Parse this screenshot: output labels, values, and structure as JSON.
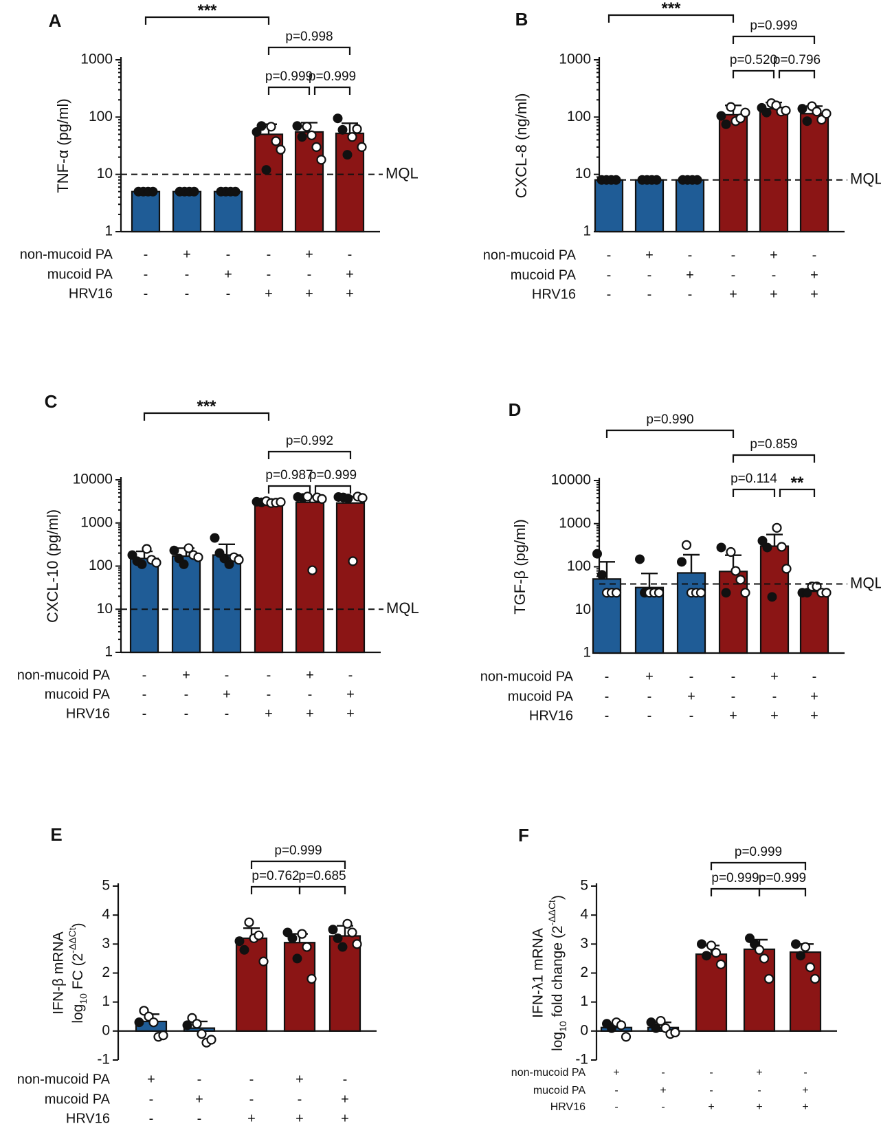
{
  "colors": {
    "control": "#1f5c96",
    "virus": "#8b1515",
    "ink": "#111111"
  },
  "row_labels": [
    "non-mucoid PA",
    "mucoid PA",
    "HRV16"
  ],
  "mql_label": "MQL",
  "chart_data": [
    {
      "panel": "A",
      "type": "bar",
      "scale": "log",
      "ylabel": "TNF-α (pg/ml)",
      "ylim": [
        1,
        1000
      ],
      "yticks": [
        1,
        10,
        100,
        1000
      ],
      "ytick_labels": [
        "1",
        "10",
        "100",
        "1000"
      ],
      "mql": 10,
      "bar_colors": [
        "control",
        "control",
        "control",
        "virus",
        "virus",
        "virus"
      ],
      "values": [
        5,
        5,
        5,
        50,
        55,
        52
      ],
      "errors": [
        0,
        0,
        0,
        75,
        80,
        78
      ],
      "points": [
        {
          "f": [
            5,
            5,
            5,
            5
          ],
          "o": []
        },
        {
          "f": [
            5,
            5,
            5,
            5
          ],
          "o": []
        },
        {
          "f": [
            5,
            5,
            5,
            5
          ],
          "o": []
        },
        {
          "f": [
            55,
            70,
            12
          ],
          "o": [
            68,
            38,
            27
          ]
        },
        {
          "f": [
            70,
            45
          ],
          "o": [
            68,
            48,
            30,
            18
          ]
        },
        {
          "f": [
            95,
            60,
            22
          ],
          "o": [
            45,
            62,
            30
          ]
        }
      ],
      "conditions": [
        [
          "-",
          "+",
          "-",
          "-",
          "+",
          "-"
        ],
        [
          "-",
          "-",
          "+",
          "-",
          "-",
          "+"
        ],
        [
          "-",
          "-",
          "-",
          "+",
          "+",
          "+"
        ]
      ],
      "comparisons": [
        {
          "from": 0,
          "to": 3,
          "label": "***",
          "level": 0
        },
        {
          "from": 3,
          "to": 5,
          "label": "p=0.998",
          "level": 1
        },
        {
          "from": 3,
          "to": 4,
          "label": "p=0.999",
          "level": 2
        },
        {
          "from": 4,
          "to": 5,
          "label": "p=0.999",
          "level": 2
        }
      ]
    },
    {
      "panel": "B",
      "type": "bar",
      "scale": "log",
      "ylabel": "CXCL-8 (ng/ml)",
      "ylim": [
        1,
        1000
      ],
      "yticks": [
        1,
        10,
        100,
        1000
      ],
      "ytick_labels": [
        "1",
        "10",
        "100",
        "1000"
      ],
      "mql": 8,
      "bar_colors": [
        "control",
        "control",
        "control",
        "virus",
        "virus",
        "virus"
      ],
      "values": [
        8,
        8,
        8,
        110,
        140,
        115
      ],
      "errors": [
        0,
        0,
        0,
        160,
        180,
        155
      ],
      "points": [
        {
          "f": [
            8,
            8,
            8,
            8
          ],
          "o": []
        },
        {
          "f": [
            8,
            8,
            8,
            8
          ],
          "o": []
        },
        {
          "f": [
            8,
            8,
            8,
            8
          ],
          "o": []
        },
        {
          "f": [
            105,
            75
          ],
          "o": [
            150,
            85,
            95,
            120
          ]
        },
        {
          "f": [
            145,
            120
          ],
          "o": [
            175,
            160,
            125,
            130
          ]
        },
        {
          "f": [
            140,
            85
          ],
          "o": [
            155,
            125,
            90,
            115
          ]
        }
      ],
      "conditions": [
        [
          "-",
          "+",
          "-",
          "-",
          "+",
          "-"
        ],
        [
          "-",
          "-",
          "+",
          "-",
          "-",
          "+"
        ],
        [
          "-",
          "-",
          "-",
          "+",
          "+",
          "+"
        ]
      ],
      "comparisons": [
        {
          "from": 0,
          "to": 3,
          "label": "***",
          "level": 0
        },
        {
          "from": 3,
          "to": 5,
          "label": "p=0.999",
          "level": 1
        },
        {
          "from": 3,
          "to": 4,
          "label": "p=0.520",
          "level": 2
        },
        {
          "from": 4,
          "to": 5,
          "label": "p=0.796",
          "level": 2
        }
      ]
    },
    {
      "panel": "C",
      "type": "bar",
      "scale": "log",
      "ylabel": "CXCL-10 (pg/ml)",
      "ylim": [
        1,
        10000
      ],
      "yticks": [
        1,
        10,
        100,
        1000,
        10000
      ],
      "ytick_labels": [
        "1",
        "10",
        "100",
        "1000",
        "10000"
      ],
      "mql": 10,
      "bar_colors": [
        "control",
        "control",
        "control",
        "virus",
        "virus",
        "virus"
      ],
      "values": [
        150,
        170,
        180,
        3000,
        3000,
        2900
      ],
      "errors": [
        220,
        260,
        320,
        3300,
        4200,
        4100
      ],
      "points": [
        {
          "f": [
            180,
            130,
            110
          ],
          "o": [
            250,
            140,
            120
          ]
        },
        {
          "f": [
            230,
            150,
            110
          ],
          "o": [
            260,
            180,
            160
          ]
        },
        {
          "f": [
            450,
            200,
            150,
            110
          ],
          "o": [
            160,
            140
          ]
        },
        {
          "f": [
            3100,
            3000
          ],
          "o": [
            3200,
            2900,
            2950,
            3050
          ]
        },
        {
          "f": [
            4000,
            3800
          ],
          "o": [
            4100,
            80,
            3900,
            3600
          ]
        },
        {
          "f": [
            4000,
            3900,
            3700
          ],
          "o": [
            130,
            4100,
            3800
          ]
        }
      ],
      "conditions": [
        [
          "-",
          "+",
          "-",
          "-",
          "+",
          "-"
        ],
        [
          "-",
          "-",
          "+",
          "-",
          "-",
          "+"
        ],
        [
          "-",
          "-",
          "-",
          "+",
          "+",
          "+"
        ]
      ],
      "comparisons": [
        {
          "from": 0,
          "to": 3,
          "label": "***",
          "level": 0
        },
        {
          "from": 3,
          "to": 5,
          "label": "p=0.992",
          "level": 1
        },
        {
          "from": 3,
          "to": 4,
          "label": "p=0.987",
          "level": 2
        },
        {
          "from": 4,
          "to": 5,
          "label": "p=0.999",
          "level": 2
        }
      ]
    },
    {
      "panel": "D",
      "type": "bar",
      "scale": "log",
      "ylabel": "TGF-β (pg/ml)",
      "ylim": [
        1,
        10000
      ],
      "yticks": [
        1,
        10,
        100,
        1000,
        10000
      ],
      "ytick_labels": [
        "1",
        "10",
        "100",
        "1000",
        "10000"
      ],
      "mql": 40,
      "bar_colors": [
        "control",
        "control",
        "control",
        "virus",
        "virus",
        "virus"
      ],
      "values": [
        52,
        33,
        72,
        78,
        300,
        27
      ],
      "errors": [
        130,
        70,
        190,
        185,
        560,
        40
      ],
      "points": [
        {
          "f": [
            200,
            65
          ],
          "o": [
            25,
            25,
            25
          ]
        },
        {
          "f": [
            150,
            25
          ],
          "o": [
            25,
            25,
            25
          ]
        },
        {
          "f": [
            130
          ],
          "o": [
            320,
            25,
            25,
            25
          ]
        },
        {
          "f": [
            280,
            25
          ],
          "o": [
            220,
            80,
            50,
            25
          ]
        },
        {
          "f": [
            400,
            280,
            20
          ],
          "o": [
            800,
            290,
            90
          ]
        },
        {
          "f": [
            25,
            25
          ],
          "o": [
            35,
            35,
            25,
            25
          ]
        }
      ],
      "conditions": [
        [
          "-",
          "+",
          "-",
          "-",
          "+",
          "-"
        ],
        [
          "-",
          "-",
          "+",
          "-",
          "-",
          "+"
        ],
        [
          "-",
          "-",
          "-",
          "+",
          "+",
          "+"
        ]
      ],
      "comparisons": [
        {
          "from": 0,
          "to": 3,
          "label": "p=0.990",
          "level": 0
        },
        {
          "from": 3,
          "to": 5,
          "label": "p=0.859",
          "level": 1
        },
        {
          "from": 3,
          "to": 4,
          "label": "p=0.114",
          "level": 2
        },
        {
          "from": 4,
          "to": 5,
          "label": "**",
          "level": 2
        }
      ]
    },
    {
      "panel": "E",
      "type": "bar",
      "scale": "linear",
      "ylabel_lines": [
        "IFN-β mRNA",
        "log10 FC (2-ΔΔCt)"
      ],
      "ylim": [
        -1,
        5
      ],
      "yticks": [
        -1,
        0,
        1,
        2,
        3,
        4,
        5
      ],
      "ytick_labels": [
        "-1",
        "0",
        "1",
        "2",
        "3",
        "4",
        "5"
      ],
      "bar_colors": [
        "control",
        "control",
        "virus",
        "virus",
        "virus"
      ],
      "values": [
        0.33,
        0.1,
        3.2,
        3.05,
        3.28
      ],
      "errors": [
        0.58,
        0.33,
        3.55,
        3.35,
        3.63
      ],
      "points": [
        {
          "f": [
            0.3
          ],
          "o": [
            0.7,
            0.5,
            0.3,
            -0.2,
            -0.15
          ]
        },
        {
          "f": [
            0.2
          ],
          "o": [
            0.45,
            0.25,
            -0.1,
            -0.4,
            -0.3
          ]
        },
        {
          "f": [
            3.1,
            2.8
          ],
          "o": [
            3.75,
            3.2,
            3.3,
            2.4
          ]
        },
        {
          "f": [
            3.4,
            3.2,
            2.5
          ],
          "o": [
            3.35,
            2.9,
            1.8
          ]
        },
        {
          "f": [
            3.5,
            3.2,
            2.9
          ],
          "o": [
            3.7,
            3.4,
            3.0
          ]
        }
      ],
      "conditions": [
        [
          "+",
          "-",
          "-",
          "+",
          "-"
        ],
        [
          "-",
          "+",
          "-",
          "-",
          "+"
        ],
        [
          "-",
          "-",
          "+",
          "+",
          "+"
        ]
      ],
      "comparisons": [
        {
          "from": 2,
          "to": 4,
          "label": "p=0.999",
          "level": 1
        },
        {
          "from": 2,
          "to": 3,
          "label": "p=0.762",
          "level": 2
        },
        {
          "from": 3,
          "to": 4,
          "label": "p=0.685",
          "level": 2
        }
      ]
    },
    {
      "panel": "F",
      "type": "bar",
      "scale": "linear",
      "ylabel_lines": [
        "IFN-λ1 mRNA",
        "log10 fold change (2-ΔΔCt)"
      ],
      "ylim": [
        -1,
        5
      ],
      "yticks": [
        -1,
        0,
        1,
        2,
        3,
        4,
        5
      ],
      "ytick_labels": [
        "-1",
        "0",
        "1",
        "2",
        "3",
        "4",
        "5"
      ],
      "bar_colors": [
        "control",
        "control",
        "virus",
        "virus",
        "virus"
      ],
      "values": [
        0.12,
        0.12,
        2.65,
        2.82,
        2.72
      ],
      "errors": [
        0.25,
        0.3,
        2.95,
        3.15,
        3.0
      ],
      "points": [
        {
          "f": [
            0.25,
            0.1
          ],
          "o": [
            0.3,
            0.2,
            -0.2
          ]
        },
        {
          "f": [
            0.3,
            0.1
          ],
          "o": [
            0.35,
            0.1,
            -0.1,
            -0.05
          ]
        },
        {
          "f": [
            3.0,
            2.6
          ],
          "o": [
            2.95,
            2.7,
            2.3
          ]
        },
        {
          "f": [
            3.2,
            3.0
          ],
          "o": [
            2.8,
            2.5,
            1.8
          ]
        },
        {
          "f": [
            3.0,
            2.6
          ],
          "o": [
            2.9,
            2.2,
            1.8
          ]
        }
      ],
      "conditions": [
        [
          "+",
          "-",
          "-",
          "+",
          "-"
        ],
        [
          "-",
          "+",
          "-",
          "-",
          "+"
        ],
        [
          "-",
          "-",
          "+",
          "+",
          "+"
        ]
      ],
      "comparisons": [
        {
          "from": 2,
          "to": 4,
          "label": "p=0.999",
          "level": 1
        },
        {
          "from": 2,
          "to": 3,
          "label": "p=0.999",
          "level": 2
        },
        {
          "from": 3,
          "to": 4,
          "label": "p=0.999",
          "level": 2
        }
      ]
    }
  ]
}
